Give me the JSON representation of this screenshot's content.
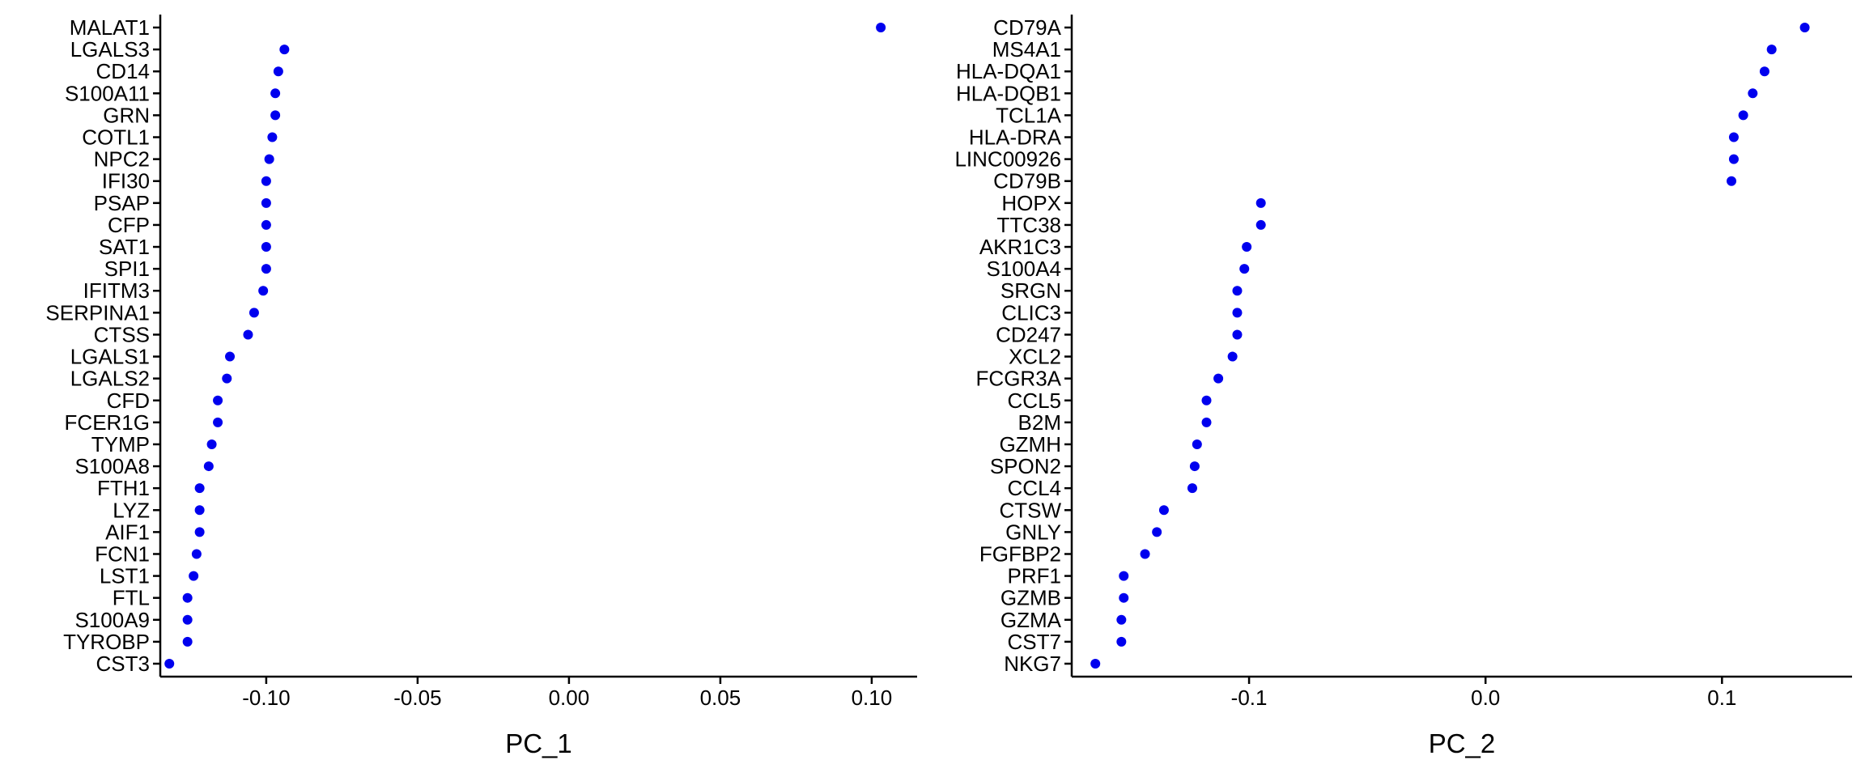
{
  "chart_data": [
    {
      "type": "scatter",
      "xlabel": "PC_1",
      "ylabel": "",
      "xlim": [
        -0.135,
        0.115
      ],
      "x_ticks": [
        {
          "value": -0.1,
          "label": "-0.10"
        },
        {
          "value": -0.05,
          "label": "-0.05"
        },
        {
          "value": 0.0,
          "label": "0.00"
        },
        {
          "value": 0.05,
          "label": "0.05"
        },
        {
          "value": 0.1,
          "label": "0.10"
        }
      ],
      "point_color": "#0000ee",
      "grid": false,
      "categories": [
        "MALAT1",
        "LGALS3",
        "CD14",
        "S100A11",
        "GRN",
        "COTL1",
        "NPC2",
        "IFI30",
        "PSAP",
        "CFP",
        "SAT1",
        "SPI1",
        "IFITM3",
        "SERPINA1",
        "CTSS",
        "LGALS1",
        "LGALS2",
        "CFD",
        "FCER1G",
        "TYMP",
        "S100A8",
        "FTH1",
        "LYZ",
        "AIF1",
        "FCN1",
        "LST1",
        "FTL",
        "S100A9",
        "TYROBP",
        "CST3"
      ],
      "values": [
        0.103,
        -0.094,
        -0.096,
        -0.097,
        -0.097,
        -0.098,
        -0.099,
        -0.1,
        -0.1,
        -0.1,
        -0.1,
        -0.1,
        -0.101,
        -0.104,
        -0.106,
        -0.112,
        -0.113,
        -0.116,
        -0.116,
        -0.118,
        -0.119,
        -0.122,
        -0.122,
        -0.122,
        -0.123,
        -0.124,
        -0.126,
        -0.126,
        -0.126,
        -0.132
      ]
    },
    {
      "type": "scatter",
      "xlabel": "PC_2",
      "ylabel": "",
      "xlim": [
        -0.175,
        0.155
      ],
      "x_ticks": [
        {
          "value": -0.1,
          "label": "-0.1"
        },
        {
          "value": 0.0,
          "label": "0.0"
        },
        {
          "value": 0.1,
          "label": "0.1"
        }
      ],
      "point_color": "#0000ee",
      "grid": false,
      "categories": [
        "CD79A",
        "MS4A1",
        "HLA-DQA1",
        "HLA-DQB1",
        "TCL1A",
        "HLA-DRA",
        "LINC00926",
        "CD79B",
        "HOPX",
        "TTC38",
        "AKR1C3",
        "S100A4",
        "SRGN",
        "CLIC3",
        "CD247",
        "XCL2",
        "FCGR3A",
        "CCL5",
        "B2M",
        "GZMH",
        "SPON2",
        "CCL4",
        "CTSW",
        "GNLY",
        "FGFBP2",
        "PRF1",
        "GZMB",
        "GZMA",
        "CST7",
        "NKG7"
      ],
      "values": [
        0.135,
        0.121,
        0.118,
        0.113,
        0.109,
        0.105,
        0.105,
        0.104,
        -0.095,
        -0.095,
        -0.101,
        -0.102,
        -0.105,
        -0.105,
        -0.105,
        -0.107,
        -0.113,
        -0.118,
        -0.118,
        -0.122,
        -0.123,
        -0.124,
        -0.136,
        -0.139,
        -0.144,
        -0.153,
        -0.153,
        -0.154,
        -0.154,
        -0.165
      ]
    }
  ]
}
